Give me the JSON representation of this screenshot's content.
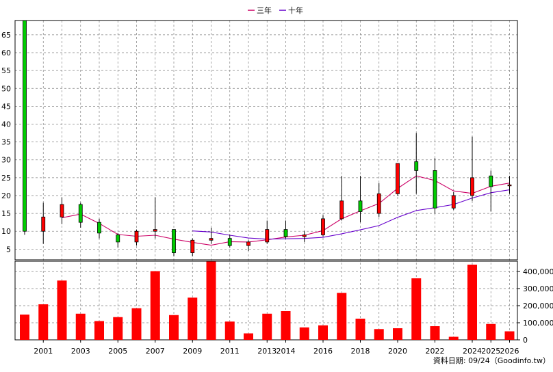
{
  "legend": [
    {
      "label": "三年",
      "color": "#cc0066"
    },
    {
      "label": "十年",
      "color": "#6600cc"
    }
  ],
  "footer": "資料日期: 09/24（Goodinfo.tw）",
  "colors": {
    "rise": "#ff0000",
    "fall": "#00cc00",
    "volume": "#ff0000",
    "grid": "#808080"
  },
  "chart_data": [
    {
      "type": "candlestick",
      "x": [
        "2000",
        "2001",
        "2002",
        "2003",
        "2004",
        "2005",
        "2006",
        "2007",
        "2008",
        "2009",
        "2010",
        "2011",
        "2012",
        "2013",
        "2014",
        "2015",
        "2016",
        "2017",
        "2018",
        "2019",
        "2020",
        "2021",
        "2022",
        "2023",
        "2024",
        "2025",
        "2026"
      ],
      "x_tick_labels": [
        "2001",
        "2003",
        "2005",
        "2007",
        "2009",
        "2011",
        "2013",
        "2014",
        "2016",
        "2018",
        "2020",
        "2022",
        "2024",
        "2025",
        "2026"
      ],
      "y_ticks": [
        5,
        10,
        15,
        20,
        25,
        30,
        35,
        40,
        45,
        50,
        55,
        60,
        65
      ],
      "ylim": [
        2,
        69
      ],
      "candles": [
        {
          "open": 69,
          "high": 69,
          "low": 9,
          "close": 10
        },
        {
          "open": 10,
          "high": 18,
          "low": 6.5,
          "close": 14
        },
        {
          "open": 14,
          "high": 19.5,
          "low": 12,
          "close": 17.5
        },
        {
          "open": 17.5,
          "high": 18,
          "low": 11,
          "close": 12.5
        },
        {
          "open": 12.5,
          "high": 13.5,
          "low": 8,
          "close": 9.5
        },
        {
          "open": 9,
          "high": 9.5,
          "low": 5.5,
          "close": 7
        },
        {
          "open": 7,
          "high": 10.5,
          "low": 6,
          "close": 10
        },
        {
          "open": 10,
          "high": 19.5,
          "low": 8,
          "close": 10.5
        },
        {
          "open": 10.5,
          "high": 10.5,
          "low": 3,
          "close": 4
        },
        {
          "open": 4,
          "high": 8,
          "low": 3,
          "close": 7.5
        },
        {
          "open": 7.5,
          "high": 11,
          "low": 6.5,
          "close": 8
        },
        {
          "open": 8,
          "high": 9,
          "low": 5.5,
          "close": 6
        },
        {
          "open": 6,
          "high": 7.5,
          "low": 4.5,
          "close": 7
        },
        {
          "open": 7,
          "high": 13,
          "low": 6.5,
          "close": 10.5
        },
        {
          "open": 10.5,
          "high": 13,
          "low": 8,
          "close": 8.5
        },
        {
          "open": 8.5,
          "high": 10,
          "low": 7,
          "close": 9
        },
        {
          "open": 9,
          "high": 14.5,
          "low": 8.5,
          "close": 13.5
        },
        {
          "open": 13.5,
          "high": 25.5,
          "low": 13,
          "close": 18.5
        },
        {
          "open": 18.5,
          "high": 25.5,
          "low": 12.5,
          "close": 15.5
        },
        {
          "open": 15,
          "high": 23.5,
          "low": 14,
          "close": 20.5
        },
        {
          "open": 20.5,
          "high": 29,
          "low": 20,
          "close": 29
        },
        {
          "open": 29.5,
          "high": 37.5,
          "low": 20.5,
          "close": 27
        },
        {
          "open": 27,
          "high": 30.5,
          "low": 15,
          "close": 16.5
        },
        {
          "open": 16.5,
          "high": 21,
          "low": 16,
          "close": 20
        },
        {
          "open": 20,
          "high": 36.5,
          "low": 18.5,
          "close": 25
        },
        {
          "open": 25.5,
          "high": 27,
          "low": 15.5,
          "close": 22.5
        },
        {
          "open": 23,
          "high": 25.5,
          "low": 20.5,
          "close": 23
        }
      ],
      "series": [
        {
          "name": "三年",
          "values": [
            null,
            null,
            13.8,
            14.8,
            12.2,
            9.1,
            8.6,
            8.9,
            7.8,
            6.9,
            6.1,
            7.1,
            7.0,
            7.6,
            8.4,
            8.9,
            10.2,
            13.5,
            15.7,
            17.8,
            22.0,
            25.5,
            24.2,
            21.3,
            20.6,
            22.6,
            23.5
          ]
        },
        {
          "name": "十年",
          "values": [
            null,
            null,
            null,
            null,
            null,
            null,
            null,
            null,
            null,
            10.1,
            9.8,
            8.9,
            8.1,
            7.8,
            7.9,
            8.0,
            8.3,
            9.3,
            10.4,
            11.6,
            13.9,
            15.8,
            16.6,
            17.5,
            19.3,
            20.8,
            21.6
          ]
        }
      ]
    },
    {
      "type": "bar",
      "y_ticks": [
        0,
        100000,
        200000,
        300000,
        400000
      ],
      "y_tick_labels": [
        "0",
        "100,000",
        "200,000",
        "300,000",
        "400,000"
      ],
      "ylim": [
        0,
        460000
      ],
      "values": [
        148000,
        208000,
        347000,
        153000,
        110000,
        133000,
        185000,
        402000,
        145000,
        247000,
        458000,
        107000,
        38000,
        153000,
        168000,
        73000,
        85000,
        275000,
        124000,
        63000,
        68000,
        360000,
        80000,
        18000,
        440000,
        93000,
        50000
      ]
    }
  ]
}
